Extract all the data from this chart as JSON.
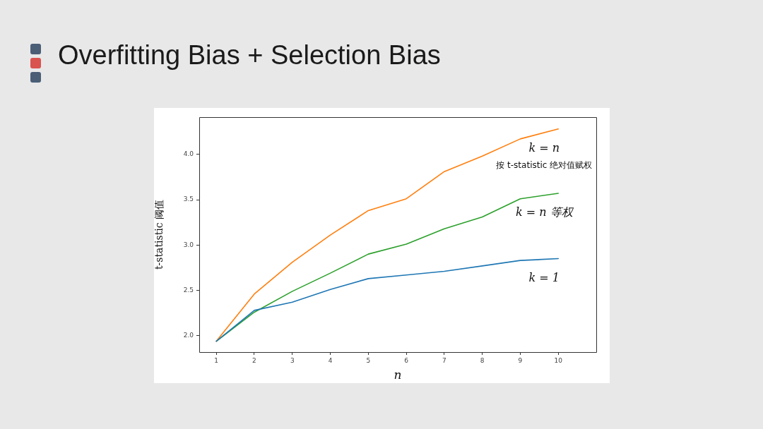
{
  "chart_data": {
    "type": "line",
    "title": "Overfitting Bias + Selection Bias",
    "xlabel": "n",
    "ylabel": "t-statistic 阈值",
    "x": [
      1,
      2,
      3,
      4,
      5,
      6,
      7,
      8,
      9,
      10
    ],
    "xlim": [
      0.55,
      11
    ],
    "xticks": [
      1,
      2,
      3,
      4,
      5,
      6,
      7,
      8,
      9,
      10
    ],
    "ylim": [
      1.82,
      4.41
    ],
    "yticks": [
      {
        "value": 2,
        "label": "2.0"
      },
      2.5,
      {
        "value": 3,
        "label": "3.0"
      },
      3.5,
      {
        "value": 4,
        "label": "4.0"
      }
    ],
    "grid": false,
    "legend": false,
    "marker": "none",
    "line_style": "solid",
    "series": [
      {
        "name": "k = 1",
        "color": "#1f77b4",
        "values": [
          1.94,
          2.28,
          2.37,
          2.51,
          2.63,
          2.67,
          2.71,
          2.77,
          2.83,
          2.85
        ]
      },
      {
        "name": "k = n\n按 t-statistic 绝对值赋权",
        "color": "#ff7f0e",
        "values": [
          1.94,
          2.46,
          2.81,
          3.11,
          3.38,
          3.51,
          3.81,
          3.98,
          4.17,
          4.28
        ]
      },
      {
        "name": "k = n 等权",
        "color": "#2ca02c",
        "values": [
          1.94,
          2.26,
          2.49,
          2.69,
          2.9,
          3.01,
          3.18,
          3.31,
          3.51,
          3.57
        ]
      }
    ]
  }
}
